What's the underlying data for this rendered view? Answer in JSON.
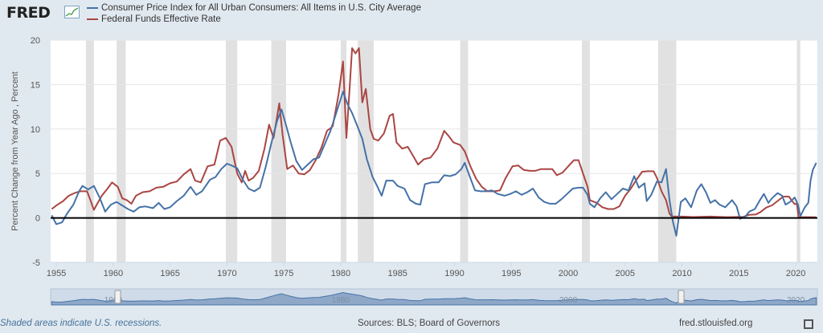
{
  "header": {
    "logo_text": "FRED",
    "logo_icon": "line-chart-icon"
  },
  "footer": {
    "note": "Shaded areas indicate U.S. recessions.",
    "sources": "Sources: BLS; Board of Governors",
    "site": "fred.stlouisfed.org",
    "expand_icon": "fullscreen-icon"
  },
  "colors": {
    "background": "#e1e9f0",
    "plot_bg": "#ffffff",
    "cpi": "#4572a7",
    "ffr": "#aa4643",
    "recession": "#e1e1e1",
    "navigator": "#4572a7"
  },
  "chart_data": {
    "type": "line",
    "ylabel": "Percent Change from Year Ago , Percent",
    "xlim": [
      1954.5,
      2021.9
    ],
    "ylim": [
      -5,
      20
    ],
    "yticks": [
      -5,
      0,
      5,
      10,
      15,
      20
    ],
    "xticks": [
      1955,
      1960,
      1965,
      1970,
      1975,
      1980,
      1985,
      1990,
      1995,
      2000,
      2005,
      2010,
      2015,
      2020
    ],
    "grid": "horizontal",
    "legend_position": "top-left",
    "recessions": [
      [
        1957.6,
        1958.3
      ],
      [
        1960.3,
        1961.1
      ],
      [
        1969.9,
        1970.9
      ],
      [
        1973.9,
        1975.2
      ],
      [
        1980.0,
        1980.5
      ],
      [
        1981.5,
        1982.9
      ],
      [
        1990.5,
        1991.2
      ],
      [
        2001.2,
        2001.9
      ],
      [
        2007.9,
        2009.5
      ],
      [
        2020.1,
        2020.4
      ]
    ],
    "series": [
      {
        "name": "Consumer Price Index for All Urban Consumers: All Items in U.S. City Average",
        "color": "#4572a7",
        "points": [
          [
            1954.6,
            0.3
          ],
          [
            1955.0,
            -0.7
          ],
          [
            1955.5,
            -0.5
          ],
          [
            1955.9,
            0.4
          ],
          [
            1956.5,
            1.5
          ],
          [
            1957.0,
            3.0
          ],
          [
            1957.3,
            3.6
          ],
          [
            1957.8,
            3.2
          ],
          [
            1958.3,
            3.6
          ],
          [
            1958.8,
            2.3
          ],
          [
            1959.3,
            0.7
          ],
          [
            1959.8,
            1.5
          ],
          [
            1960.3,
            1.8
          ],
          [
            1960.8,
            1.4
          ],
          [
            1961.3,
            1.0
          ],
          [
            1961.8,
            0.7
          ],
          [
            1962.3,
            1.2
          ],
          [
            1962.8,
            1.3
          ],
          [
            1963.5,
            1.1
          ],
          [
            1964.0,
            1.7
          ],
          [
            1964.5,
            1.0
          ],
          [
            1965.0,
            1.2
          ],
          [
            1965.6,
            1.9
          ],
          [
            1966.2,
            2.5
          ],
          [
            1966.8,
            3.5
          ],
          [
            1967.3,
            2.6
          ],
          [
            1967.8,
            3.0
          ],
          [
            1968.5,
            4.3
          ],
          [
            1969.0,
            4.6
          ],
          [
            1969.5,
            5.5
          ],
          [
            1970.0,
            6.1
          ],
          [
            1970.4,
            5.9
          ],
          [
            1970.9,
            5.6
          ],
          [
            1971.4,
            4.3
          ],
          [
            1971.9,
            3.3
          ],
          [
            1972.4,
            3.0
          ],
          [
            1972.9,
            3.4
          ],
          [
            1973.4,
            5.7
          ],
          [
            1973.9,
            8.4
          ],
          [
            1974.4,
            10.9
          ],
          [
            1974.8,
            12.2
          ],
          [
            1975.2,
            10.4
          ],
          [
            1975.6,
            8.5
          ],
          [
            1976.1,
            6.4
          ],
          [
            1976.6,
            5.4
          ],
          [
            1977.1,
            6.0
          ],
          [
            1977.6,
            6.6
          ],
          [
            1978.1,
            6.8
          ],
          [
            1978.6,
            8.3
          ],
          [
            1979.1,
            9.8
          ],
          [
            1979.6,
            11.8
          ],
          [
            1980.2,
            14.2
          ],
          [
            1980.6,
            12.8
          ],
          [
            1981.0,
            11.8
          ],
          [
            1981.5,
            10.2
          ],
          [
            1981.9,
            8.9
          ],
          [
            1982.3,
            6.6
          ],
          [
            1982.8,
            4.6
          ],
          [
            1983.2,
            3.6
          ],
          [
            1983.6,
            2.5
          ],
          [
            1984.0,
            4.2
          ],
          [
            1984.6,
            4.2
          ],
          [
            1985.0,
            3.6
          ],
          [
            1985.6,
            3.3
          ],
          [
            1986.1,
            2.0
          ],
          [
            1986.6,
            1.6
          ],
          [
            1987.0,
            1.5
          ],
          [
            1987.4,
            3.8
          ],
          [
            1988.0,
            4.0
          ],
          [
            1988.6,
            4.0
          ],
          [
            1989.1,
            4.8
          ],
          [
            1989.6,
            4.7
          ],
          [
            1990.1,
            4.9
          ],
          [
            1990.6,
            5.5
          ],
          [
            1990.9,
            6.2
          ],
          [
            1991.3,
            4.8
          ],
          [
            1991.8,
            3.1
          ],
          [
            1992.3,
            3.0
          ],
          [
            1992.8,
            3.0
          ],
          [
            1993.3,
            3.1
          ],
          [
            1993.8,
            2.7
          ],
          [
            1994.4,
            2.5
          ],
          [
            1994.9,
            2.7
          ],
          [
            1995.4,
            3.0
          ],
          [
            1995.9,
            2.6
          ],
          [
            1996.4,
            2.9
          ],
          [
            1996.9,
            3.3
          ],
          [
            1997.4,
            2.3
          ],
          [
            1997.9,
            1.8
          ],
          [
            1998.4,
            1.6
          ],
          [
            1998.9,
            1.6
          ],
          [
            1999.4,
            2.1
          ],
          [
            1999.9,
            2.7
          ],
          [
            2000.4,
            3.3
          ],
          [
            2000.9,
            3.4
          ],
          [
            2001.3,
            3.4
          ],
          [
            2001.7,
            2.6
          ],
          [
            2001.9,
            1.6
          ],
          [
            2002.3,
            1.2
          ],
          [
            2002.8,
            2.2
          ],
          [
            2003.3,
            2.9
          ],
          [
            2003.8,
            2.1
          ],
          [
            2004.3,
            2.7
          ],
          [
            2004.8,
            3.3
          ],
          [
            2005.3,
            3.1
          ],
          [
            2005.8,
            4.7
          ],
          [
            2006.2,
            3.4
          ],
          [
            2006.7,
            3.9
          ],
          [
            2006.9,
            1.9
          ],
          [
            2007.3,
            2.6
          ],
          [
            2007.8,
            4.1
          ],
          [
            2008.2,
            4.0
          ],
          [
            2008.6,
            5.5
          ],
          [
            2008.9,
            2.0
          ],
          [
            2009.2,
            -0.4
          ],
          [
            2009.5,
            -2.0
          ],
          [
            2009.9,
            1.8
          ],
          [
            2010.3,
            2.2
          ],
          [
            2010.8,
            1.2
          ],
          [
            2011.3,
            3.1
          ],
          [
            2011.7,
            3.8
          ],
          [
            2012.1,
            2.9
          ],
          [
            2012.5,
            1.7
          ],
          [
            2012.9,
            2.0
          ],
          [
            2013.3,
            1.5
          ],
          [
            2013.8,
            1.2
          ],
          [
            2014.4,
            2.0
          ],
          [
            2014.8,
            1.3
          ],
          [
            2015.1,
            -0.1
          ],
          [
            2015.6,
            0.2
          ],
          [
            2015.9,
            0.7
          ],
          [
            2016.4,
            1.0
          ],
          [
            2016.9,
            2.1
          ],
          [
            2017.2,
            2.7
          ],
          [
            2017.6,
            1.7
          ],
          [
            2017.9,
            2.2
          ],
          [
            2018.4,
            2.8
          ],
          [
            2018.8,
            2.5
          ],
          [
            2019.1,
            1.5
          ],
          [
            2019.5,
            1.8
          ],
          [
            2019.9,
            2.3
          ],
          [
            2020.2,
            1.5
          ],
          [
            2020.4,
            0.2
          ],
          [
            2020.8,
            1.2
          ],
          [
            2021.1,
            1.7
          ],
          [
            2021.3,
            4.2
          ],
          [
            2021.5,
            5.4
          ],
          [
            2021.8,
            6.2
          ]
        ]
      },
      {
        "name": "Federal Funds Effective Rate",
        "color": "#aa4643",
        "points": [
          [
            1954.6,
            1.0
          ],
          [
            1955.0,
            1.4
          ],
          [
            1955.6,
            1.9
          ],
          [
            1956.1,
            2.5
          ],
          [
            1956.6,
            2.8
          ],
          [
            1957.1,
            3.0
          ],
          [
            1957.7,
            3.0
          ],
          [
            1958.0,
            2.0
          ],
          [
            1958.3,
            0.9
          ],
          [
            1958.6,
            1.6
          ],
          [
            1959.0,
            2.5
          ],
          [
            1959.5,
            3.3
          ],
          [
            1959.9,
            4.0
          ],
          [
            1960.4,
            3.5
          ],
          [
            1960.8,
            2.2
          ],
          [
            1961.2,
            2.0
          ],
          [
            1961.6,
            1.6
          ],
          [
            1962.0,
            2.5
          ],
          [
            1962.6,
            2.9
          ],
          [
            1963.2,
            3.0
          ],
          [
            1963.8,
            3.4
          ],
          [
            1964.4,
            3.5
          ],
          [
            1965.0,
            3.9
          ],
          [
            1965.6,
            4.1
          ],
          [
            1966.2,
            4.9
          ],
          [
            1966.8,
            5.5
          ],
          [
            1967.2,
            4.2
          ],
          [
            1967.7,
            4.0
          ],
          [
            1968.3,
            5.8
          ],
          [
            1968.9,
            6.0
          ],
          [
            1969.4,
            8.7
          ],
          [
            1969.9,
            9.0
          ],
          [
            1970.4,
            8.0
          ],
          [
            1970.9,
            5.0
          ],
          [
            1971.3,
            4.0
          ],
          [
            1971.6,
            5.3
          ],
          [
            1971.9,
            4.2
          ],
          [
            1972.3,
            4.5
          ],
          [
            1972.8,
            5.3
          ],
          [
            1973.3,
            7.8
          ],
          [
            1973.7,
            10.5
          ],
          [
            1974.1,
            9.0
          ],
          [
            1974.6,
            12.9
          ],
          [
            1974.9,
            9.3
          ],
          [
            1975.3,
            5.5
          ],
          [
            1975.8,
            5.9
          ],
          [
            1976.3,
            5.0
          ],
          [
            1976.8,
            4.9
          ],
          [
            1977.3,
            5.4
          ],
          [
            1977.8,
            6.5
          ],
          [
            1978.3,
            7.9
          ],
          [
            1978.8,
            9.8
          ],
          [
            1979.3,
            10.3
          ],
          [
            1979.8,
            13.8
          ],
          [
            1980.2,
            17.6
          ],
          [
            1980.5,
            9.0
          ],
          [
            1980.8,
            15.0
          ],
          [
            1981.0,
            19.1
          ],
          [
            1981.3,
            18.5
          ],
          [
            1981.6,
            19.1
          ],
          [
            1981.9,
            13.0
          ],
          [
            1982.2,
            14.5
          ],
          [
            1982.6,
            10.0
          ],
          [
            1982.9,
            8.9
          ],
          [
            1983.3,
            8.7
          ],
          [
            1983.8,
            9.5
          ],
          [
            1984.3,
            11.5
          ],
          [
            1984.6,
            11.7
          ],
          [
            1984.9,
            8.5
          ],
          [
            1985.4,
            7.8
          ],
          [
            1985.9,
            8.0
          ],
          [
            1986.4,
            6.9
          ],
          [
            1986.8,
            6.0
          ],
          [
            1987.3,
            6.6
          ],
          [
            1987.9,
            6.8
          ],
          [
            1988.5,
            7.8
          ],
          [
            1989.1,
            9.8
          ],
          [
            1989.5,
            9.2
          ],
          [
            1989.9,
            8.5
          ],
          [
            1990.5,
            8.2
          ],
          [
            1990.9,
            7.5
          ],
          [
            1991.4,
            5.8
          ],
          [
            1991.9,
            4.4
          ],
          [
            1992.4,
            3.5
          ],
          [
            1992.9,
            3.0
          ],
          [
            1993.5,
            3.0
          ],
          [
            1994.0,
            3.1
          ],
          [
            1994.5,
            4.5
          ],
          [
            1995.1,
            5.8
          ],
          [
            1995.6,
            5.9
          ],
          [
            1996.1,
            5.4
          ],
          [
            1996.6,
            5.3
          ],
          [
            1997.1,
            5.3
          ],
          [
            1997.6,
            5.5
          ],
          [
            1998.1,
            5.5
          ],
          [
            1998.6,
            5.5
          ],
          [
            1999.0,
            4.8
          ],
          [
            1999.5,
            5.1
          ],
          [
            2000.0,
            5.8
          ],
          [
            2000.5,
            6.5
          ],
          [
            2000.9,
            6.5
          ],
          [
            2001.3,
            5.0
          ],
          [
            2001.7,
            3.5
          ],
          [
            2001.9,
            2.0
          ],
          [
            2002.5,
            1.7
          ],
          [
            2003.0,
            1.2
          ],
          [
            2003.5,
            1.0
          ],
          [
            2004.0,
            1.0
          ],
          [
            2004.5,
            1.3
          ],
          [
            2005.0,
            2.5
          ],
          [
            2005.5,
            3.3
          ],
          [
            2006.0,
            4.3
          ],
          [
            2006.5,
            5.2
          ],
          [
            2007.0,
            5.25
          ],
          [
            2007.5,
            5.25
          ],
          [
            2007.8,
            4.5
          ],
          [
            2008.2,
            3.0
          ],
          [
            2008.6,
            2.0
          ],
          [
            2008.9,
            0.5
          ],
          [
            2009.1,
            0.16
          ],
          [
            2010.0,
            0.15
          ],
          [
            2011.0,
            0.1
          ],
          [
            2012.5,
            0.15
          ],
          [
            2014.0,
            0.09
          ],
          [
            2015.4,
            0.13
          ],
          [
            2015.9,
            0.35
          ],
          [
            2016.5,
            0.4
          ],
          [
            2016.9,
            0.66
          ],
          [
            2017.4,
            1.16
          ],
          [
            2017.9,
            1.41
          ],
          [
            2018.4,
            1.9
          ],
          [
            2018.9,
            2.4
          ],
          [
            2019.4,
            2.4
          ],
          [
            2019.6,
            2.04
          ],
          [
            2019.9,
            1.55
          ],
          [
            2020.1,
            1.6
          ],
          [
            2020.25,
            0.05
          ],
          [
            2020.6,
            0.09
          ],
          [
            2021.0,
            0.09
          ],
          [
            2021.8,
            0.08
          ]
        ]
      }
    ],
    "navigator": {
      "labels": [
        "1960",
        "1980",
        "2000",
        "2020"
      ]
    }
  }
}
